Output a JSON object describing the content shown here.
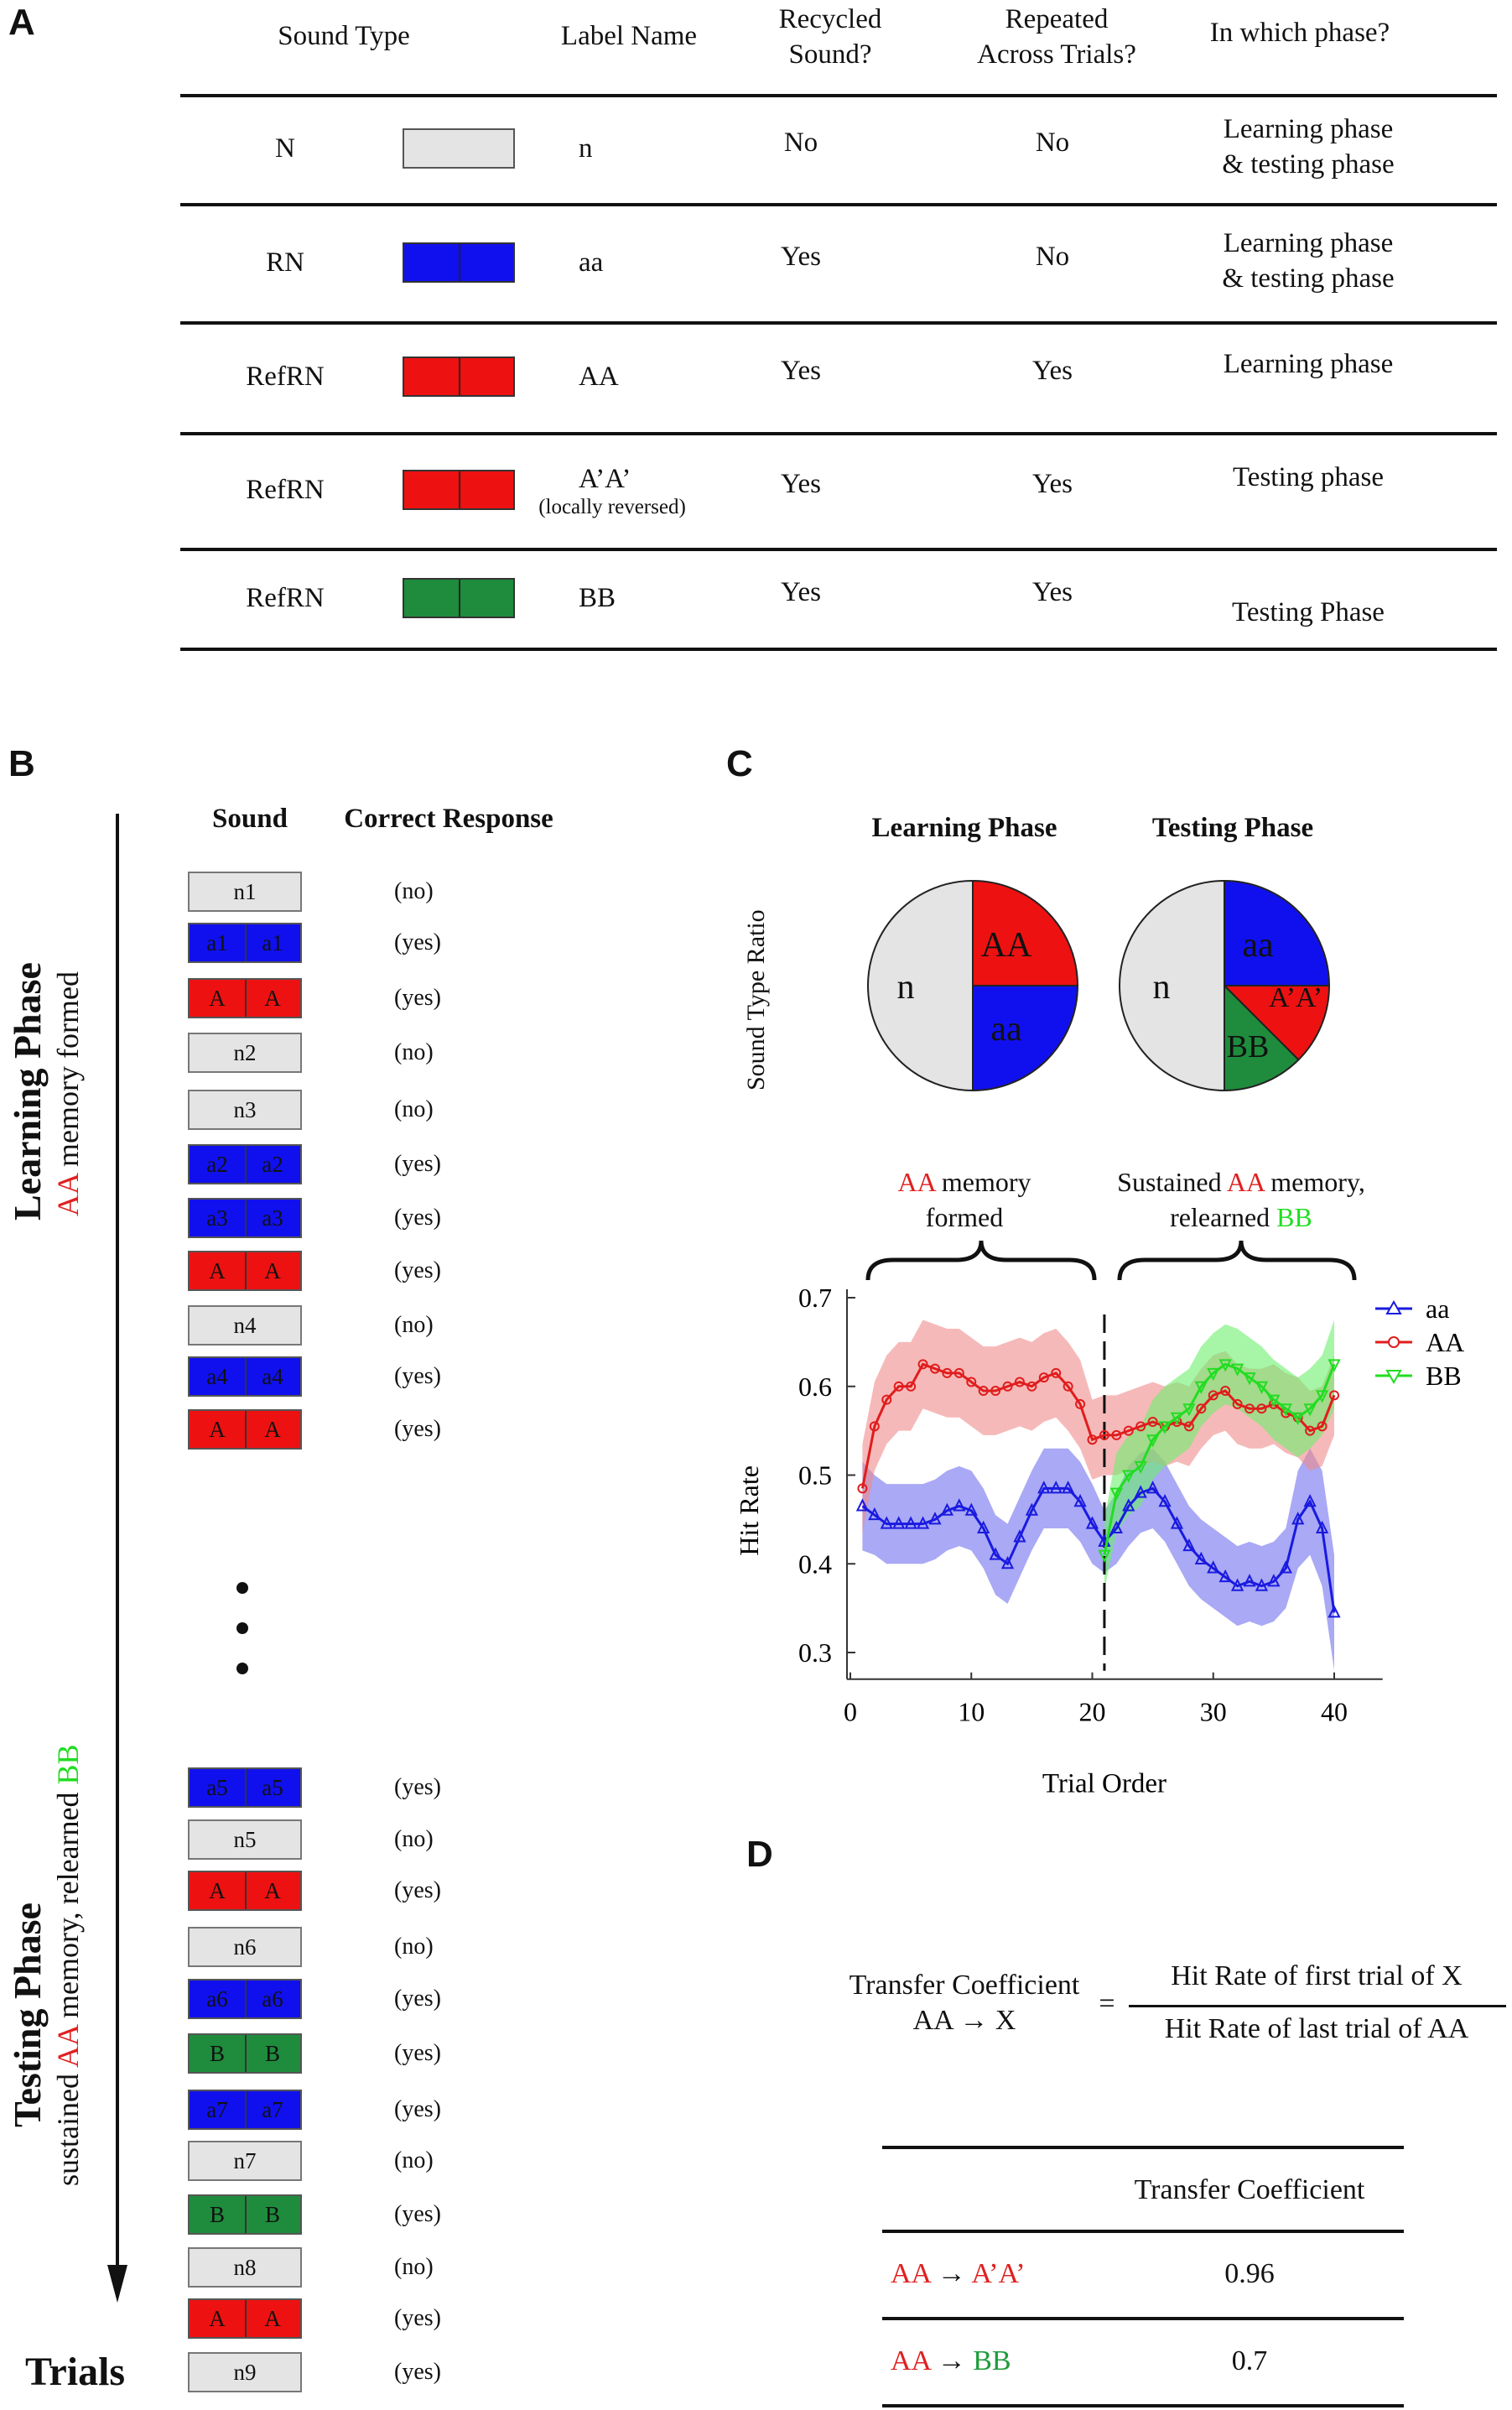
{
  "colors": {
    "n": "#e4e4e4",
    "aa": "#1010ee",
    "AA": "#ee1111",
    "BB": "#1e8c3c",
    "BB_bright": "#2ee62e",
    "red_text": "#e02020",
    "green_text": "#1e9c3c"
  },
  "panel_a": {
    "letter": "A",
    "headers": {
      "sound_type": "Sound Type",
      "label_name": "Label Name",
      "recycled_line1": "Recycled",
      "recycled_line2": "Sound?",
      "repeated_line1": "Repeated",
      "repeated_line2": "Across Trials?",
      "phase": "In which phase?"
    },
    "rows": [
      {
        "type": "N",
        "swatch": "n",
        "label": "n",
        "note": "",
        "recycled": "No",
        "repeated": "No",
        "phase1": "Learning phase",
        "phase2": "& testing phase"
      },
      {
        "type": "RN",
        "swatch": "aa",
        "label": "aa",
        "note": "",
        "recycled": "Yes",
        "repeated": "No",
        "phase1": "Learning phase",
        "phase2": "& testing phase"
      },
      {
        "type": "RefRN",
        "swatch": "AA",
        "label": "AA",
        "note": "",
        "recycled": "Yes",
        "repeated": "Yes",
        "phase1": "Learning phase",
        "phase2": ""
      },
      {
        "type": "RefRN",
        "swatch": "AA",
        "label": "A’A’",
        "note": "(locally reversed)",
        "recycled": "Yes",
        "repeated": "Yes",
        "phase1": "Testing phase",
        "phase2": ""
      },
      {
        "type": "RefRN",
        "swatch": "BB",
        "label": "BB",
        "note": "",
        "recycled": "Yes",
        "repeated": "Yes",
        "phase1": "Testing Phase",
        "phase2": ""
      }
    ]
  },
  "panel_b": {
    "letter": "B",
    "col_sound": "Sound",
    "col_response": "Correct Response",
    "learning_title": "Learning Phase",
    "learning_sub_pre": "",
    "learning_sub_red": "AA",
    "learning_sub_post": " memory formed",
    "testing_title": "Testing Phase",
    "testing_sub_pre": "sustained ",
    "testing_sub_red": "AA",
    "testing_sub_mid": " memory, relearned ",
    "testing_sub_green": "BB",
    "trials_label": "Trials",
    "learning_seq": [
      {
        "kind": "n",
        "text": "n1",
        "resp": "(no)"
      },
      {
        "kind": "aa",
        "text": "a1",
        "resp": "(yes)"
      },
      {
        "kind": "AA",
        "text": "A",
        "resp": "(yes)"
      },
      {
        "kind": "n",
        "text": "n2",
        "resp": "(no)"
      },
      {
        "kind": "n",
        "text": "n3",
        "resp": "(no)"
      },
      {
        "kind": "aa",
        "text": "a2",
        "resp": "(yes)"
      },
      {
        "kind": "aa",
        "text": "a3",
        "resp": "(yes)"
      },
      {
        "kind": "AA",
        "text": "A",
        "resp": "(yes)"
      },
      {
        "kind": "n",
        "text": "n4",
        "resp": "(no)"
      },
      {
        "kind": "aa",
        "text": "a4",
        "resp": "(yes)"
      },
      {
        "kind": "AA",
        "text": "A",
        "resp": "(yes)"
      }
    ],
    "testing_seq": [
      {
        "kind": "aa",
        "text": "a5",
        "resp": "(yes)"
      },
      {
        "kind": "n",
        "text": "n5",
        "resp": "(no)"
      },
      {
        "kind": "AA",
        "text": "A",
        "resp": "(yes)"
      },
      {
        "kind": "n",
        "text": "n6",
        "resp": "(no)"
      },
      {
        "kind": "aa",
        "text": "a6",
        "resp": "(yes)"
      },
      {
        "kind": "BB",
        "text": "B",
        "resp": "(yes)"
      },
      {
        "kind": "aa",
        "text": "a7",
        "resp": "(yes)"
      },
      {
        "kind": "n",
        "text": "n7",
        "resp": "(no)"
      },
      {
        "kind": "BB",
        "text": "B",
        "resp": "(yes)"
      },
      {
        "kind": "n",
        "text": "n8",
        "resp": "(no)"
      },
      {
        "kind": "AA",
        "text": "A",
        "resp": "(yes)"
      },
      {
        "kind": "n",
        "text": "n9",
        "resp": "(yes)"
      }
    ]
  },
  "panel_c": {
    "letter": "C",
    "ratio_label": "Sound Type Ratio",
    "learning_title": "Learning Phase",
    "testing_title": "Testing Phase",
    "brace_left_red": "AA",
    "brace_left_rest1": " memory",
    "brace_left_rest2": "formed",
    "brace_right_pre": "Sustained ",
    "brace_right_red": "AA",
    "brace_right_post": " memory,",
    "brace_right_line2": "relearned",
    "brace_right_green": "BB"
  },
  "chart_data": [
    {
      "type": "pie",
      "title": "Learning Phase",
      "slices": [
        {
          "label": "n",
          "value": 0.5,
          "color": "#e4e4e4"
        },
        {
          "label": "AA",
          "value": 0.25,
          "color": "#ee1111"
        },
        {
          "label": "aa",
          "value": 0.25,
          "color": "#1010ee"
        }
      ]
    },
    {
      "type": "pie",
      "title": "Testing Phase",
      "slices": [
        {
          "label": "n",
          "value": 0.5,
          "color": "#e4e4e4"
        },
        {
          "label": "aa",
          "value": 0.25,
          "color": "#1010ee"
        },
        {
          "label": "A’A’",
          "value": 0.125,
          "color": "#ee1111"
        },
        {
          "label": "BB",
          "value": 0.125,
          "color": "#1e8c3c"
        }
      ]
    },
    {
      "type": "line",
      "xlabel": "Trial Order",
      "ylabel": "Hit Rate",
      "xlim": [
        0,
        44
      ],
      "ylim": [
        0.27,
        0.72
      ],
      "xticks": [
        0,
        10,
        20,
        30,
        40
      ],
      "yticks": [
        0.3,
        0.4,
        0.5,
        0.6,
        0.7
      ],
      "divider_x": 21,
      "legend": "top-right",
      "series": [
        {
          "name": "aa",
          "color": "#1a1ae0",
          "band": "#7070ee",
          "marker": "triangle-up",
          "x": [
            1,
            2,
            3,
            4,
            5,
            6,
            7,
            8,
            9,
            10,
            11,
            12,
            13,
            14,
            15,
            16,
            17,
            18,
            19,
            20,
            21,
            22,
            23,
            24,
            25,
            26,
            27,
            28,
            29,
            30,
            31,
            32,
            33,
            34,
            35,
            36,
            37,
            38,
            39,
            40
          ],
          "y": [
            0.465,
            0.455,
            0.445,
            0.445,
            0.445,
            0.445,
            0.45,
            0.46,
            0.465,
            0.46,
            0.44,
            0.41,
            0.4,
            0.43,
            0.46,
            0.485,
            0.485,
            0.485,
            0.47,
            0.445,
            0.425,
            0.44,
            0.465,
            0.48,
            0.485,
            0.47,
            0.445,
            0.42,
            0.405,
            0.395,
            0.385,
            0.375,
            0.38,
            0.375,
            0.38,
            0.395,
            0.45,
            0.47,
            0.44,
            0.345
          ],
          "err": [
            0.05,
            0.045,
            0.045,
            0.045,
            0.045,
            0.045,
            0.045,
            0.045,
            0.045,
            0.045,
            0.045,
            0.045,
            0.045,
            0.045,
            0.045,
            0.045,
            0.045,
            0.045,
            0.045,
            0.045,
            0.035,
            0.04,
            0.045,
            0.045,
            0.045,
            0.045,
            0.045,
            0.045,
            0.045,
            0.045,
            0.045,
            0.045,
            0.045,
            0.045,
            0.045,
            0.045,
            0.055,
            0.06,
            0.065,
            0.065
          ]
        },
        {
          "name": "AA",
          "color": "#e01c1c",
          "band": "#f08a8a",
          "marker": "circle",
          "x": [
            1,
            2,
            3,
            4,
            5,
            6,
            7,
            8,
            9,
            10,
            11,
            12,
            13,
            14,
            15,
            16,
            17,
            18,
            19,
            20,
            21,
            22,
            23,
            24,
            25,
            26,
            27,
            28,
            29,
            30,
            31,
            32,
            33,
            34,
            35,
            36,
            37,
            38,
            39,
            40
          ],
          "y": [
            0.485,
            0.555,
            0.585,
            0.6,
            0.6,
            0.625,
            0.62,
            0.615,
            0.615,
            0.605,
            0.595,
            0.595,
            0.6,
            0.605,
            0.6,
            0.61,
            0.615,
            0.6,
            0.58,
            0.54,
            0.545,
            0.545,
            0.55,
            0.555,
            0.56,
            0.555,
            0.56,
            0.555,
            0.575,
            0.59,
            0.595,
            0.58,
            0.575,
            0.575,
            0.58,
            0.57,
            0.565,
            0.55,
            0.555,
            0.59
          ],
          "err": [
            0.05,
            0.05,
            0.05,
            0.05,
            0.05,
            0.05,
            0.05,
            0.05,
            0.05,
            0.05,
            0.05,
            0.05,
            0.05,
            0.05,
            0.05,
            0.05,
            0.05,
            0.05,
            0.05,
            0.045,
            0.045,
            0.045,
            0.045,
            0.045,
            0.045,
            0.045,
            0.045,
            0.045,
            0.045,
            0.045,
            0.045,
            0.045,
            0.045,
            0.045,
            0.045,
            0.045,
            0.045,
            0.045,
            0.045,
            0.045
          ]
        },
        {
          "name": "BB",
          "color": "#22dd22",
          "band": "#6cf06c",
          "marker": "triangle-down",
          "x": [
            21,
            22,
            23,
            24,
            25,
            26,
            27,
            28,
            29,
            30,
            31,
            32,
            33,
            34,
            35,
            36,
            37,
            38,
            39,
            40
          ],
          "y": [
            0.41,
            0.48,
            0.5,
            0.51,
            0.54,
            0.555,
            0.565,
            0.575,
            0.6,
            0.615,
            0.625,
            0.62,
            0.61,
            0.6,
            0.585,
            0.575,
            0.565,
            0.575,
            0.59,
            0.625
          ],
          "err": [
            0.04,
            0.045,
            0.045,
            0.045,
            0.045,
            0.045,
            0.045,
            0.045,
            0.045,
            0.045,
            0.045,
            0.045,
            0.045,
            0.045,
            0.045,
            0.045,
            0.045,
            0.045,
            0.045,
            0.05
          ]
        }
      ]
    }
  ],
  "panel_d": {
    "letter": "D",
    "lhs_line1": "Transfer Coefficient",
    "lhs_line2": "AA → X",
    "equals": "=",
    "numerator": "Hit Rate of first trial of X",
    "denominator": "Hit Rate of last trial of AA",
    "table_header": "Transfer Coefficient",
    "rows": [
      {
        "from": "AA",
        "arrow": " → ",
        "to": "A’A’",
        "to_color": "red",
        "value": "0.96"
      },
      {
        "from": "AA",
        "arrow": " → ",
        "to": "BB",
        "to_color": "green",
        "value": "0.7"
      }
    ]
  }
}
